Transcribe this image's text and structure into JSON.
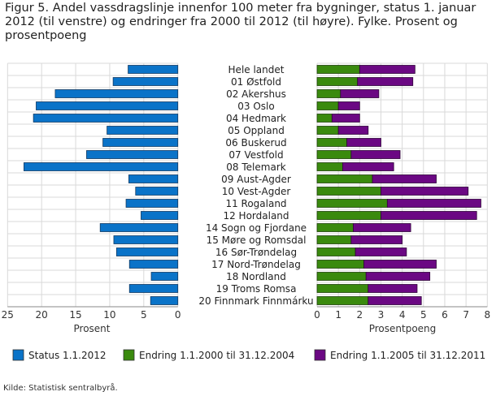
{
  "title": "Figur 5. Andel vassdragslinje innenfor 100 meter fra bygninger, status 1. januar 2012 (til venstre) og endringer fra 2000 til 2012 (til høyre). Fylke. Prosent og prosentpoeng",
  "source": "Kilde: Statistisk sentralbyrå.",
  "colors": {
    "status": "#0a73c8",
    "endring1": "#3a8a0e",
    "endring2": "#6b0883",
    "grid": "#d9d9d9"
  },
  "chart_data": [
    {
      "type": "bar",
      "orientation": "horizontal",
      "categories": [
        "Hele landet",
        "01 Østfold",
        "02 Akershus",
        "03 Oslo",
        "04 Hedmark",
        "05 Oppland",
        "06 Buskerud",
        "07 Vestfold",
        "08 Telemark",
        "09 Aust-Agder",
        "10 Vest-Agder",
        "11 Rogaland",
        "12 Hordaland",
        "14 Sogn og Fjordane",
        "15 Møre og Romsdal",
        "16 Sør-Trøndelag",
        "17 Nord-Trøndelag",
        "18 Nordland",
        "19 Troms Romsa",
        "20 Finnmark Finnmárku"
      ],
      "series": [
        {
          "name": "Status 1.1.2012",
          "values": [
            7.3,
            9.5,
            18.0,
            20.8,
            21.2,
            10.4,
            11.0,
            13.4,
            22.6,
            7.2,
            6.2,
            7.6,
            5.4,
            11.4,
            9.4,
            9.0,
            7.1,
            3.9,
            7.1,
            4.0
          ]
        }
      ],
      "xlabel": "Prosent",
      "xlim": [
        25,
        0
      ],
      "xticks": [
        "25",
        "20",
        "15",
        "10",
        "5",
        "0"
      ],
      "grid": true
    },
    {
      "type": "bar",
      "orientation": "horizontal",
      "stacked": true,
      "categories": [
        "Hele landet",
        "01 Østfold",
        "02 Akershus",
        "03 Oslo",
        "04 Hedmark",
        "05 Oppland",
        "06 Buskerud",
        "07 Vestfold",
        "08 Telemark",
        "09 Aust-Agder",
        "10 Vest-Agder",
        "11 Rogaland",
        "12 Hordaland",
        "14 Sogn og Fjordane",
        "15 Møre og Romsdal",
        "16 Sør-Trøndelag",
        "17 Nord-Trøndelag",
        "18 Nordland",
        "19 Troms Romsa",
        "20 Finnmark Finnmárku"
      ],
      "series": [
        {
          "name": "Endring 1.1.2000 til 31.12.2004",
          "values": [
            2.0,
            1.9,
            1.1,
            1.0,
            0.7,
            1.0,
            1.4,
            1.6,
            1.2,
            2.6,
            3.0,
            3.3,
            3.0,
            1.7,
            1.6,
            1.8,
            2.2,
            2.3,
            2.4,
            2.4
          ]
        },
        {
          "name": "Endring 1.1.2005 til 31.12.2011",
          "values": [
            2.6,
            2.6,
            1.8,
            1.0,
            1.3,
            1.4,
            1.6,
            2.3,
            2.4,
            3.0,
            4.1,
            4.4,
            4.5,
            2.7,
            2.4,
            2.4,
            3.4,
            3.0,
            2.3,
            2.5
          ]
        }
      ],
      "xlabel": "Prosentpoeng",
      "xlim": [
        0,
        8
      ],
      "xticks": [
        "0",
        "1",
        "2",
        "3",
        "4",
        "5",
        "6",
        "7",
        "8"
      ],
      "grid": true
    }
  ],
  "legend": [
    "Status 1.1.2012",
    "Endring 1.1.2000 til 31.12.2004",
    "Endring 1.1.2005 til 31.12.2011"
  ]
}
